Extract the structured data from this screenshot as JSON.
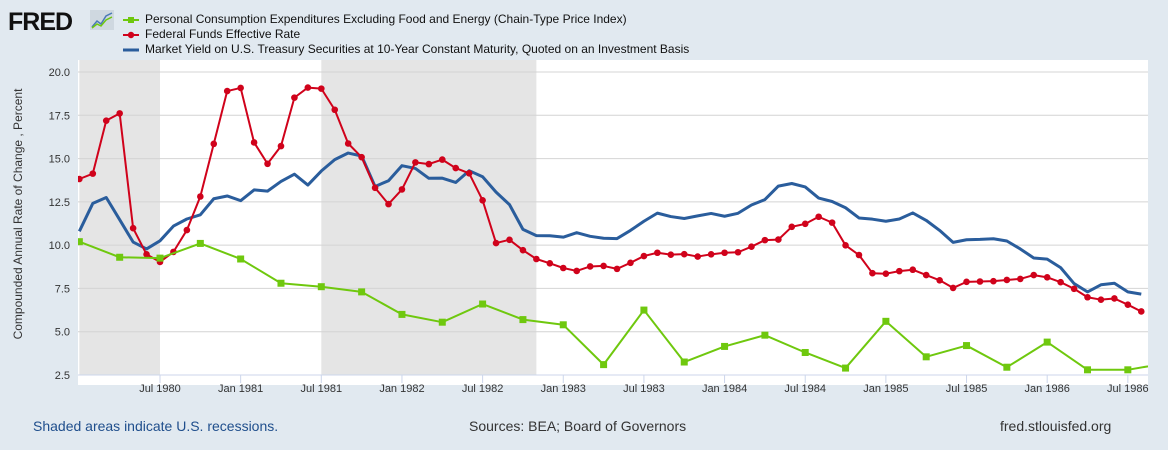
{
  "header": {
    "logo_text": "FRED"
  },
  "footer": {
    "recession_note": "Shaded areas indicate U.S. recessions.",
    "sources": "Sources: BEA; Board of Governors",
    "site": "fred.stlouisfed.org"
  },
  "chart_data": {
    "type": "line",
    "title": "",
    "ylabel": "Compounded Annual Rate of Change , Percent",
    "xlabel": "",
    "ylim": [
      2.5,
      20.0
    ],
    "xlim": [
      "1980-01",
      "1986-08"
    ],
    "yticks": [
      "2.5",
      "5.0",
      "7.5",
      "10.0",
      "12.5",
      "15.0",
      "17.5",
      "20.0"
    ],
    "xticks": [
      {
        "date": "1980-07",
        "label": "Jul 1980"
      },
      {
        "date": "1981-01",
        "label": "Jan 1981"
      },
      {
        "date": "1981-07",
        "label": "Jul 1981"
      },
      {
        "date": "1982-01",
        "label": "Jan 1982"
      },
      {
        "date": "1982-07",
        "label": "Jul 1982"
      },
      {
        "date": "1983-01",
        "label": "Jan 1983"
      },
      {
        "date": "1983-07",
        "label": "Jul 1983"
      },
      {
        "date": "1984-01",
        "label": "Jan 1984"
      },
      {
        "date": "1984-07",
        "label": "Jul 1984"
      },
      {
        "date": "1985-01",
        "label": "Jan 1985"
      },
      {
        "date": "1985-07",
        "label": "Jul 1985"
      },
      {
        "date": "1986-01",
        "label": "Jan 1986"
      },
      {
        "date": "1986-07",
        "label": "Jul 1986"
      }
    ],
    "grid": true,
    "legend": "top",
    "recessions": [
      {
        "start": "1980-01",
        "end": "1980-07"
      },
      {
        "start": "1981-07",
        "end": "1982-11"
      }
    ],
    "series": [
      {
        "name": "Personal Consumption Expenditures Excluding Food and Energy (Chain-Type Price Index)",
        "color": "#6fc80e",
        "marker": "square",
        "frequency": "quarterly",
        "start": "1980-01",
        "values": [
          10.2,
          9.3,
          9.25,
          10.1,
          9.2,
          7.8,
          7.6,
          7.3,
          6.0,
          5.55,
          6.6,
          5.7,
          5.4,
          3.1,
          6.25,
          3.25,
          4.15,
          4.8,
          3.8,
          2.9,
          5.6,
          3.55,
          4.2,
          2.95,
          4.4,
          2.8,
          2.8,
          3.2
        ]
      },
      {
        "name": "Federal Funds Effective Rate",
        "color": "#d0021b",
        "marker": "circle",
        "frequency": "monthly",
        "start": "1980-01",
        "values": [
          13.82,
          14.13,
          17.19,
          17.61,
          10.98,
          9.47,
          9.03,
          9.61,
          10.87,
          12.81,
          15.85,
          18.9,
          19.08,
          15.93,
          14.7,
          15.72,
          18.52,
          19.1,
          19.04,
          17.82,
          15.87,
          15.08,
          13.31,
          12.37,
          13.22,
          14.78,
          14.68,
          14.94,
          14.45,
          14.15,
          12.59,
          10.12,
          10.31,
          9.71,
          9.2,
          8.95,
          8.68,
          8.51,
          8.77,
          8.8,
          8.63,
          8.98,
          9.37,
          9.56,
          9.45,
          9.48,
          9.34,
          9.47,
          9.56,
          9.59,
          9.91,
          10.29,
          10.32,
          11.06,
          11.23,
          11.64,
          11.3,
          9.99,
          9.43,
          8.38,
          8.35,
          8.5,
          8.58,
          8.27,
          7.97,
          7.53,
          7.88,
          7.9,
          7.92,
          7.99,
          8.05,
          8.27,
          8.14,
          7.86,
          7.48,
          6.99,
          6.85,
          6.92,
          6.56,
          6.17
        ]
      },
      {
        "name": "Market Yield on U.S. Treasury Securities at 10-Year Constant Maturity, Quoted on an Investment Basis",
        "color": "#2a5d9c",
        "marker": "none",
        "frequency": "monthly",
        "start": "1980-01",
        "values": [
          10.8,
          12.41,
          12.75,
          11.47,
          10.18,
          9.78,
          10.25,
          11.1,
          11.51,
          11.75,
          12.68,
          12.84,
          12.57,
          13.19,
          13.12,
          13.68,
          14.1,
          13.47,
          14.28,
          14.94,
          15.32,
          15.15,
          13.39,
          13.72,
          14.59,
          14.43,
          13.86,
          13.87,
          13.62,
          14.3,
          13.95,
          13.06,
          12.34,
          10.91,
          10.55,
          10.54,
          10.46,
          10.72,
          10.51,
          10.4,
          10.38,
          10.85,
          11.38,
          11.85,
          11.65,
          11.54,
          11.69,
          11.83,
          11.67,
          11.84,
          12.32,
          12.63,
          13.41,
          13.56,
          13.36,
          12.72,
          12.52,
          12.16,
          11.57,
          11.5,
          11.38,
          11.51,
          11.86,
          11.43,
          10.85,
          10.16,
          10.31,
          10.33,
          10.37,
          10.24,
          9.78,
          9.26,
          9.19,
          8.7,
          7.78,
          7.3,
          7.71,
          7.8,
          7.3,
          7.17
        ]
      }
    ]
  }
}
